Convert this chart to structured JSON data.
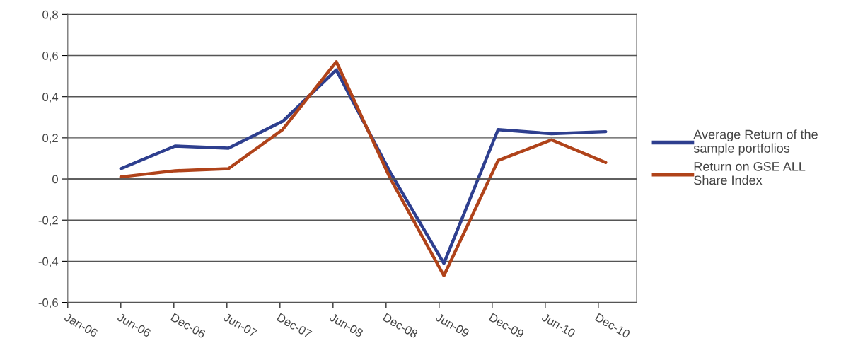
{
  "chart_data": {
    "type": "line",
    "x": [
      "2006-06-30",
      "2006-12-31",
      "2007-06-30",
      "2007-12-31",
      "2008-06-30",
      "2008-12-31",
      "2009-06-30",
      "2009-12-31",
      "2010-06-30",
      "2010-12-31"
    ],
    "series": [
      {
        "name": "Average Return of the sample portfolios",
        "color": "#2e3f8f",
        "values": [
          0.05,
          0.16,
          0.15,
          0.28,
          0.53,
          0.03,
          -0.41,
          0.24,
          0.22,
          0.23
        ]
      },
      {
        "name": "Return on GSE ALL Share Index",
        "color": "#b0431a",
        "values": [
          0.01,
          0.04,
          0.05,
          0.24,
          0.57,
          0.0,
          -0.47,
          0.09,
          0.19,
          0.08
        ]
      }
    ],
    "xlim": [
      "2006-01-01",
      "2011-04-15"
    ],
    "xticks": [
      {
        "value": "2006-01-01",
        "label": "Jan-06"
      },
      {
        "value": "2006-06-30",
        "label": "Jun-06"
      },
      {
        "value": "2006-12-27",
        "label": "Dec-06"
      },
      {
        "value": "2007-06-25",
        "label": "Jun-07"
      },
      {
        "value": "2007-12-22",
        "label": "Dec-07"
      },
      {
        "value": "2008-06-19",
        "label": "Jun-08"
      },
      {
        "value": "2008-12-16",
        "label": "Dec-08"
      },
      {
        "value": "2009-06-14",
        "label": "Jun-09"
      },
      {
        "value": "2009-12-11",
        "label": "Dec-09"
      },
      {
        "value": "2010-06-09",
        "label": "Jun-10"
      },
      {
        "value": "2010-12-06",
        "label": "Dec-10"
      }
    ],
    "ylim": [
      -0.6,
      0.8
    ],
    "yticks": [
      {
        "value": -0.6,
        "label": "-0,6"
      },
      {
        "value": -0.4,
        "label": "-0,4"
      },
      {
        "value": -0.2,
        "label": "-0,2"
      },
      {
        "value": 0,
        "label": "0"
      },
      {
        "value": 0.2,
        "label": "0,2"
      },
      {
        "value": 0.4,
        "label": "0,4"
      },
      {
        "value": 0.6,
        "label": "0,6"
      },
      {
        "value": 0.8,
        "label": "0,8"
      }
    ],
    "grid": "y",
    "legend": "right",
    "marker": "none",
    "line_style": "solid"
  }
}
